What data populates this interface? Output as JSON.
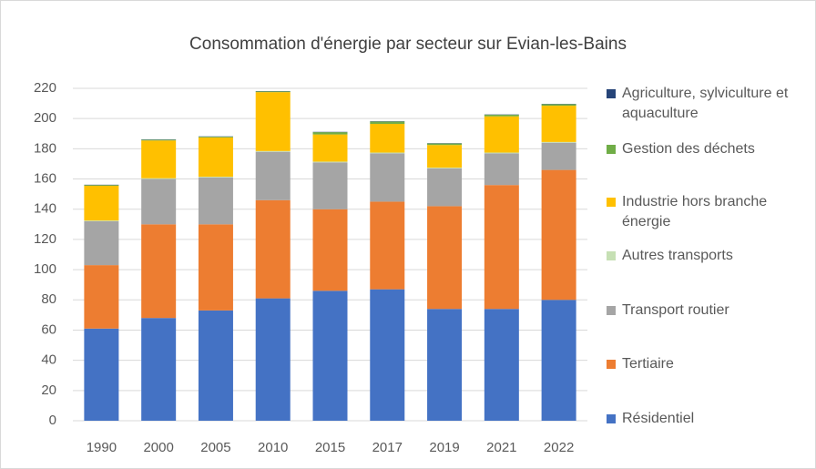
{
  "chart_data": {
    "type": "stacked_bar",
    "title": "Consommation d'énergie par secteur sur Evian-les-Bains",
    "categories": [
      "1990",
      "2000",
      "2005",
      "2010",
      "2015",
      "2017",
      "2019",
      "2021",
      "2022"
    ],
    "series": [
      {
        "name": "Résidentiel",
        "color": "#4472c4",
        "values": [
          61,
          68,
          73,
          81,
          86,
          87,
          74,
          74,
          80
        ]
      },
      {
        "name": "Tertiaire",
        "color": "#ed7d31",
        "values": [
          42,
          62,
          57,
          65,
          54,
          58,
          68,
          82,
          86
        ]
      },
      {
        "name": "Transport routier",
        "color": "#a5a5a5",
        "values": [
          29,
          30,
          31,
          32,
          31,
          32,
          25,
          21,
          18
        ]
      },
      {
        "name": "Autres transports",
        "color": "#c6e0b4",
        "values": [
          0.5,
          0.5,
          0.5,
          0.5,
          0.5,
          0.5,
          0.5,
          0.5,
          0.5
        ]
      },
      {
        "name": "Industrie hors branche énergie",
        "color": "#ffc000",
        "values": [
          23,
          25,
          26,
          39,
          18,
          19,
          15,
          24,
          24
        ]
      },
      {
        "name": "Gestion des déchets",
        "color": "#70ad47",
        "values": [
          0.5,
          0.5,
          0.5,
          0.5,
          1.5,
          1.5,
          1,
          1,
          1
        ]
      },
      {
        "name": "Agriculture, sylviculture et aquaculture",
        "color": "#264478",
        "values": [
          0.2,
          0.2,
          0.2,
          0.2,
          0.2,
          0.2,
          0.2,
          0.2,
          0.2
        ]
      }
    ],
    "ylim": [
      0,
      220
    ],
    "yticks": [
      0,
      20,
      40,
      60,
      80,
      100,
      120,
      140,
      160,
      180,
      200,
      220
    ],
    "grid": true,
    "legend": "right"
  }
}
